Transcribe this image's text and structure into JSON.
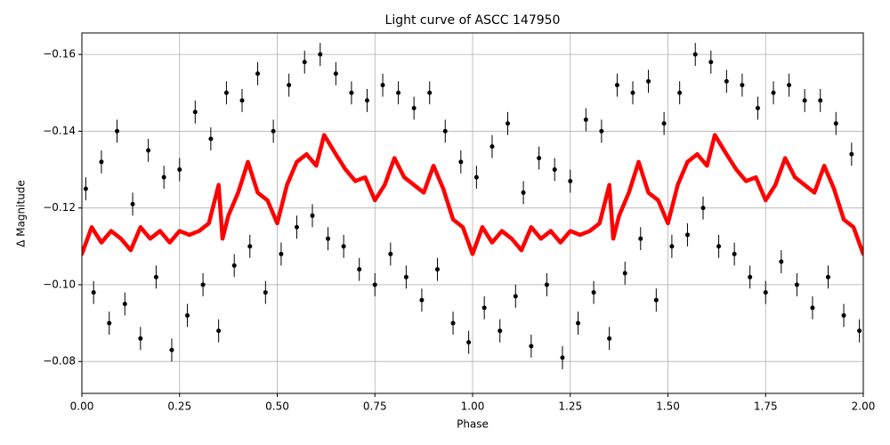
{
  "chart_data": {
    "type": "scatter",
    "title": "Light curve of ASCC 147950",
    "x_label": "Phase",
    "y_label": "Δ Magnitude",
    "xlim": [
      0,
      2
    ],
    "ylim": [
      -0.0717,
      -0.1656
    ],
    "grid": true,
    "xticks": [
      {
        "value": 0,
        "label": "0.00"
      },
      {
        "value": 0.25,
        "label": "0.25"
      },
      {
        "value": 0.5,
        "label": "0.50"
      },
      {
        "value": 0.75,
        "label": "0.75"
      },
      {
        "value": 1,
        "label": "1.00"
      },
      {
        "value": 1.25,
        "label": "1.25"
      },
      {
        "value": 1.5,
        "label": "1.50"
      },
      {
        "value": 1.75,
        "label": "1.75"
      },
      {
        "value": 2,
        "label": "2.00"
      }
    ],
    "yticks": [
      {
        "value": -0.16,
        "label": "−0.16"
      },
      {
        "value": -0.14,
        "label": "−0.14"
      },
      {
        "value": -0.12,
        "label": "−0.12"
      },
      {
        "value": -0.1,
        "label": "−0.10"
      },
      {
        "value": -0.08,
        "label": "−0.08"
      }
    ],
    "series": [
      {
        "type": "errorbar",
        "color": "#000000",
        "x": [
          0.01,
          0.03,
          0.05,
          0.07,
          0.09,
          0.11,
          0.13,
          0.15,
          0.17,
          0.19,
          0.21,
          0.23,
          0.25,
          0.27,
          0.29,
          0.31,
          0.33,
          0.35,
          0.37,
          0.39,
          0.41,
          0.43,
          0.45,
          0.47,
          0.49,
          0.51,
          0.53,
          0.55,
          0.57,
          0.59,
          0.61,
          0.63,
          0.65,
          0.67,
          0.69,
          0.71,
          0.73,
          0.75,
          0.77,
          0.79,
          0.81,
          0.83,
          0.85,
          0.87,
          0.89,
          0.91,
          0.93,
          0.95,
          0.97,
          0.99,
          1.01,
          1.03,
          1.05,
          1.07,
          1.09,
          1.11,
          1.13,
          1.15,
          1.17,
          1.19,
          1.21,
          1.23,
          1.25,
          1.27,
          1.29,
          1.31,
          1.33,
          1.35,
          1.37,
          1.39,
          1.41,
          1.43,
          1.45,
          1.47,
          1.49,
          1.51,
          1.53,
          1.55,
          1.57,
          1.59,
          1.61,
          1.63,
          1.65,
          1.67,
          1.69,
          1.71,
          1.73,
          1.75,
          1.77,
          1.79,
          1.81,
          1.83,
          1.85,
          1.87,
          1.89,
          1.91,
          1.93,
          1.95,
          1.97,
          1.99
        ],
        "values": [
          -0.125,
          -0.098,
          -0.132,
          -0.09,
          -0.14,
          -0.095,
          -0.121,
          -0.086,
          -0.135,
          -0.102,
          -0.128,
          -0.083,
          -0.13,
          -0.092,
          -0.145,
          -0.1,
          -0.138,
          -0.088,
          -0.15,
          -0.105,
          -0.148,
          -0.11,
          -0.155,
          -0.098,
          -0.14,
          -0.108,
          -0.152,
          -0.115,
          -0.158,
          -0.118,
          -0.16,
          -0.112,
          -0.155,
          -0.11,
          -0.15,
          -0.104,
          -0.148,
          -0.1,
          -0.152,
          -0.108,
          -0.15,
          -0.102,
          -0.146,
          -0.096,
          -0.15,
          -0.104,
          -0.14,
          -0.09,
          -0.132,
          -0.085,
          -0.128,
          -0.094,
          -0.136,
          -0.088,
          -0.142,
          -0.097,
          -0.124,
          -0.084,
          -0.133,
          -0.1,
          -0.13,
          -0.081,
          -0.127,
          -0.09,
          -0.143,
          -0.098,
          -0.14,
          -0.086,
          -0.152,
          -0.103,
          -0.15,
          -0.112,
          -0.153,
          -0.096,
          -0.142,
          -0.11,
          -0.15,
          -0.113,
          -0.16,
          -0.12,
          -0.158,
          -0.11,
          -0.153,
          -0.108,
          -0.152,
          -0.102,
          -0.146,
          -0.098,
          -0.15,
          -0.106,
          -0.152,
          -0.1,
          -0.148,
          -0.094,
          -0.148,
          -0.102,
          -0.142,
          -0.092,
          -0.134,
          -0.088
        ],
        "errors": [
          0.003,
          0.003,
          0.003,
          0.003,
          0.003,
          0.003,
          0.003,
          0.003,
          0.003,
          0.003,
          0.003,
          0.003,
          0.003,
          0.003,
          0.003,
          0.003,
          0.003,
          0.003,
          0.003,
          0.003,
          0.003,
          0.003,
          0.003,
          0.003,
          0.003,
          0.003,
          0.003,
          0.003,
          0.003,
          0.003,
          0.003,
          0.003,
          0.003,
          0.003,
          0.003,
          0.003,
          0.003,
          0.003,
          0.003,
          0.003,
          0.003,
          0.003,
          0.003,
          0.003,
          0.003,
          0.003,
          0.003,
          0.003,
          0.003,
          0.003,
          0.003,
          0.003,
          0.003,
          0.003,
          0.003,
          0.003,
          0.003,
          0.003,
          0.003,
          0.003,
          0.003,
          0.003,
          0.003,
          0.003,
          0.003,
          0.003,
          0.003,
          0.003,
          0.003,
          0.003,
          0.003,
          0.003,
          0.003,
          0.003,
          0.003,
          0.003,
          0.003,
          0.003,
          0.003,
          0.003,
          0.003,
          0.003,
          0.003,
          0.003,
          0.003,
          0.003,
          0.003,
          0.003,
          0.003,
          0.003,
          0.003,
          0.003,
          0.003,
          0.003,
          0.003,
          0.003,
          0.003,
          0.003,
          0.003,
          0.003
        ]
      },
      {
        "type": "line",
        "color": "#ff0000",
        "x": [
          0,
          0.025,
          0.05,
          0.075,
          0.1,
          0.125,
          0.15,
          0.175,
          0.2,
          0.225,
          0.25,
          0.275,
          0.3,
          0.325,
          0.35,
          0.36,
          0.375,
          0.4,
          0.425,
          0.45,
          0.475,
          0.5,
          0.525,
          0.55,
          0.575,
          0.6,
          0.62,
          0.65,
          0.675,
          0.7,
          0.725,
          0.75,
          0.775,
          0.8,
          0.825,
          0.85,
          0.875,
          0.9,
          0.925,
          0.95,
          0.975,
          1,
          1.025,
          1.05,
          1.075,
          1.1,
          1.125,
          1.15,
          1.175,
          1.2,
          1.225,
          1.25,
          1.275,
          1.3,
          1.325,
          1.35,
          1.36,
          1.375,
          1.4,
          1.425,
          1.45,
          1.475,
          1.5,
          1.525,
          1.55,
          1.575,
          1.6,
          1.62,
          1.65,
          1.675,
          1.7,
          1.725,
          1.75,
          1.775,
          1.8,
          1.825,
          1.85,
          1.875,
          1.9,
          1.925,
          1.95,
          1.975,
          2
        ],
        "values": [
          -0.108,
          -0.115,
          -0.111,
          -0.114,
          -0.112,
          -0.109,
          -0.115,
          -0.112,
          -0.114,
          -0.111,
          -0.114,
          -0.113,
          -0.114,
          -0.116,
          -0.126,
          -0.112,
          -0.118,
          -0.124,
          -0.132,
          -0.124,
          -0.122,
          -0.116,
          -0.126,
          -0.132,
          -0.134,
          -0.131,
          -0.139,
          -0.134,
          -0.13,
          -0.127,
          -0.128,
          -0.122,
          -0.126,
          -0.133,
          -0.128,
          -0.126,
          -0.124,
          -0.131,
          -0.125,
          -0.117,
          -0.115,
          -0.108,
          -0.115,
          -0.111,
          -0.114,
          -0.112,
          -0.109,
          -0.115,
          -0.112,
          -0.114,
          -0.111,
          -0.114,
          -0.113,
          -0.114,
          -0.116,
          -0.126,
          -0.112,
          -0.118,
          -0.124,
          -0.132,
          -0.124,
          -0.122,
          -0.116,
          -0.126,
          -0.132,
          -0.134,
          -0.131,
          -0.139,
          -0.134,
          -0.13,
          -0.127,
          -0.128,
          -0.122,
          -0.126,
          -0.133,
          -0.128,
          -0.126,
          -0.124,
          -0.131,
          -0.125,
          -0.117,
          -0.115,
          -0.108
        ]
      }
    ]
  }
}
